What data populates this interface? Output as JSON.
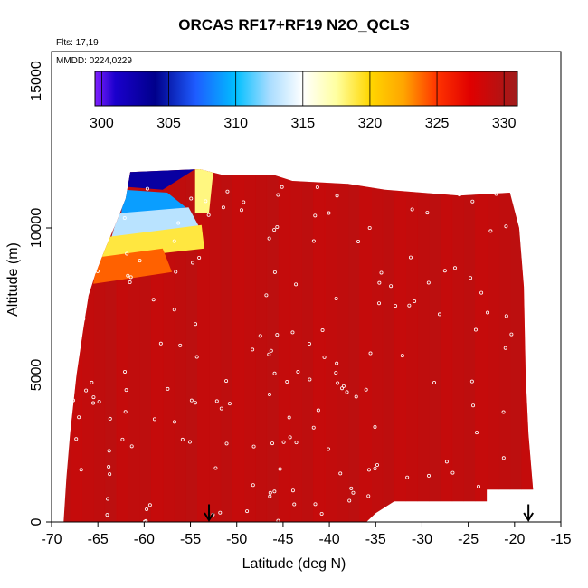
{
  "chart_data": {
    "type": "heatmap",
    "title": "ORCAS RF17+RF19 N2O_QCLS",
    "annotations": [
      "Flts: 17,19",
      "MMDD: 0224,0229"
    ],
    "xlabel": "Latitude (deg N)",
    "ylabel": "Altitude (m)",
    "xlim": [
      -70,
      -15
    ],
    "ylim": [
      0,
      16000
    ],
    "xticks": [
      -70,
      -65,
      -60,
      -55,
      -50,
      -45,
      -40,
      -35,
      -30,
      -25,
      -20,
      -15
    ],
    "yticks": [
      0,
      5000,
      10000,
      15000
    ],
    "colorbar": {
      "min": 299.5,
      "max": 331,
      "ticks": [
        300,
        305,
        310,
        315,
        320,
        325,
        330
      ],
      "stops": [
        {
          "v": 299.5,
          "c": "#7f1fff"
        },
        {
          "v": 301,
          "c": "#1a00cc"
        },
        {
          "v": 304,
          "c": "#00008b"
        },
        {
          "v": 307,
          "c": "#1e5cff"
        },
        {
          "v": 310,
          "c": "#00bfff"
        },
        {
          "v": 312.5,
          "c": "#a8dcff"
        },
        {
          "v": 315,
          "c": "#ffffff"
        },
        {
          "v": 317.5,
          "c": "#ffffa0"
        },
        {
          "v": 320,
          "c": "#ffd700"
        },
        {
          "v": 322.5,
          "c": "#ffa500"
        },
        {
          "v": 325,
          "c": "#ff3300"
        },
        {
          "v": 327.5,
          "c": "#e00000"
        },
        {
          "v": 331,
          "c": "#9f1c1c"
        }
      ]
    },
    "field": {
      "background_value": 329.5,
      "southern_boundary": [
        [
          -68.7,
          0
        ],
        [
          -68.4,
          1500
        ],
        [
          -68.0,
          3000
        ],
        [
          -67.3,
          5000
        ],
        [
          -66.6,
          6500
        ],
        [
          -66.0,
          7700
        ],
        [
          -65.3,
          8400
        ],
        [
          -64.2,
          9300
        ],
        [
          -63.0,
          10200
        ],
        [
          -62.0,
          11000
        ],
        [
          -61.5,
          11900
        ],
        [
          -54.0,
          12000
        ],
        [
          -51.5,
          11800
        ],
        [
          -46.0,
          11800
        ],
        [
          -44.0,
          11600
        ],
        [
          -38.0,
          11500
        ],
        [
          -34.0,
          11300
        ],
        [
          -30.0,
          11200
        ],
        [
          -26.0,
          11100
        ],
        [
          -20.5,
          11200
        ],
        [
          -19.5,
          10000
        ],
        [
          -19.0,
          8000
        ],
        [
          -18.8,
          5000
        ],
        [
          -18.5,
          3000
        ],
        [
          -18.0,
          1100
        ],
        [
          -23.0,
          1100
        ],
        [
          -23.0,
          700
        ],
        [
          -33.0,
          700
        ],
        [
          -35.0,
          300
        ],
        [
          -36.0,
          0
        ]
      ],
      "low_n2o_regions": [
        {
          "poly": [
            [
              -62,
              12000
            ],
            [
              -54.5,
              12000
            ],
            [
              -58.0,
              11300
            ],
            [
              -62.0,
              11400
            ]
          ],
          "value": 303
        },
        {
          "poly": [
            [
              -62.2,
              11300
            ],
            [
              -57.5,
              11200
            ],
            [
              -55.5,
              10700
            ],
            [
              -62.5,
              10400
            ]
          ],
          "value": 309
        },
        {
          "poly": [
            [
              -62.8,
              10500
            ],
            [
              -55.2,
              10700
            ],
            [
              -54.0,
              10000
            ],
            [
              -63.6,
              9600
            ]
          ],
          "value": 313
        },
        {
          "poly": [
            [
              -63.8,
              9700
            ],
            [
              -53.8,
              10100
            ],
            [
              -53.5,
              9300
            ],
            [
              -64.8,
              8900
            ]
          ],
          "value": 319
        },
        {
          "poly": [
            [
              -65.0,
              9000
            ],
            [
              -58.0,
              9300
            ],
            [
              -57.0,
              8500
            ],
            [
              -65.5,
              8100
            ]
          ],
          "value": 324
        },
        {
          "poly": [
            [
              -54.5,
              12000
            ],
            [
              -52.5,
              12000
            ],
            [
              -53.0,
              10500
            ],
            [
              -54.5,
              10500
            ]
          ],
          "value": 318
        }
      ]
    },
    "sample_points_count": 180,
    "flight_markers_lat": [
      -53,
      -18.5
    ]
  }
}
